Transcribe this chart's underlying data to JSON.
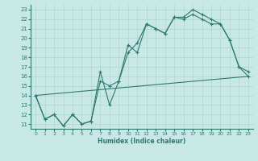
{
  "bg_color": "#c8e8e6",
  "line_color": "#2d7a6e",
  "grid_color": "#b0d4d0",
  "ylabel_ticks": [
    11,
    12,
    13,
    14,
    15,
    16,
    17,
    18,
    19,
    20,
    21,
    22,
    23
  ],
  "xlabel_ticks": [
    0,
    1,
    2,
    3,
    4,
    5,
    6,
    7,
    8,
    9,
    10,
    11,
    12,
    13,
    14,
    15,
    16,
    17,
    18,
    19,
    20,
    21,
    22,
    23
  ],
  "xlabel": "Humidex (Indice chaleur)",
  "xlim": [
    -0.5,
    23.5
  ],
  "ylim": [
    10.5,
    23.5
  ],
  "line1_x": [
    0,
    1,
    2,
    3,
    4,
    5,
    6,
    7,
    8,
    9,
    10,
    11,
    12,
    13,
    14,
    15,
    16,
    17,
    18,
    19,
    20,
    21,
    22,
    23
  ],
  "line1_y": [
    14.0,
    11.5,
    12.0,
    10.8,
    12.0,
    11.0,
    11.3,
    16.5,
    13.0,
    15.5,
    19.3,
    18.5,
    21.5,
    21.0,
    20.5,
    22.2,
    22.2,
    23.0,
    22.5,
    22.0,
    21.5,
    19.8,
    17.0,
    16.5
  ],
  "line2_x": [
    0,
    23
  ],
  "line2_y": [
    14.0,
    16.0
  ],
  "line3_x": [
    0,
    1,
    2,
    3,
    4,
    5,
    6,
    7,
    8,
    9,
    10,
    11,
    12,
    13,
    14,
    15,
    16,
    17,
    18,
    19,
    20,
    21,
    22,
    23
  ],
  "line3_y": [
    14.0,
    11.5,
    12.0,
    10.8,
    12.0,
    11.0,
    11.3,
    15.5,
    15.0,
    15.5,
    18.5,
    19.5,
    21.5,
    21.0,
    20.5,
    22.2,
    22.0,
    22.5,
    22.0,
    21.5,
    21.5,
    19.8,
    17.0,
    16.0
  ]
}
